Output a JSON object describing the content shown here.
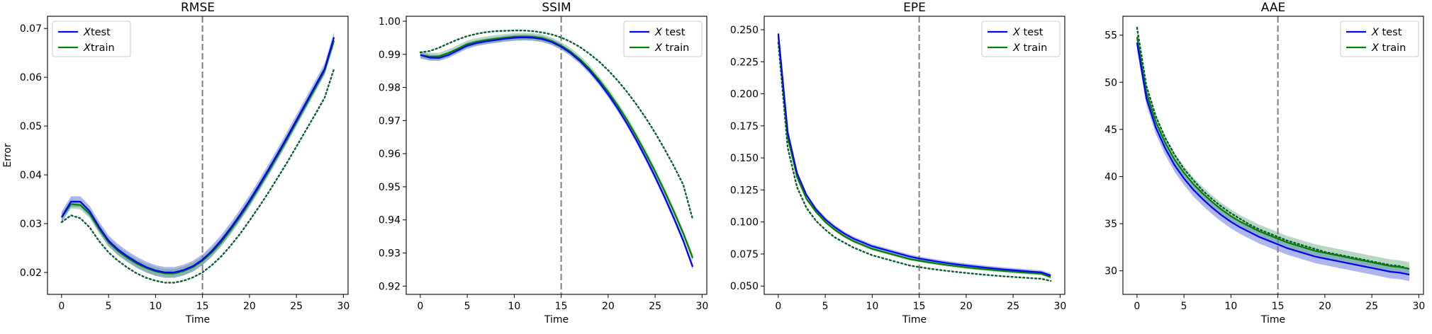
{
  "colors": {
    "test": "#0000ff",
    "train": "#008000",
    "train_dotted": "#0b5e2f",
    "vline": "#7f7f7f",
    "band_test": "#4a5fd6",
    "band_train": "#5fa77a"
  },
  "chart_data": [
    {
      "type": "line",
      "title": "RMSE",
      "xlabel": "Time",
      "ylabel": "Error",
      "xlim": [
        -1.5,
        30.5
      ],
      "ylim": [
        0.0155,
        0.0725
      ],
      "xticks": [
        "0",
        "5",
        "10",
        "15",
        "20",
        "25",
        "30"
      ],
      "yticks": [
        "0.02",
        "0.03",
        "0.04",
        "0.05",
        "0.06",
        "0.07"
      ],
      "vline_x": 15,
      "legend_position": "upper-left",
      "legend": [
        "Xtest",
        "Xtrain"
      ],
      "legend_math": [
        "X",
        "X"
      ],
      "legend_rest": [
        "test",
        "train"
      ],
      "x": [
        0,
        1,
        2,
        3,
        4,
        5,
        6,
        7,
        8,
        9,
        10,
        11,
        12,
        13,
        14,
        15,
        16,
        17,
        18,
        19,
        20,
        21,
        22,
        23,
        24,
        25,
        26,
        27,
        28,
        29
      ],
      "series": [
        {
          "name": "Xtest",
          "values": [
            0.0313,
            0.0345,
            0.0345,
            0.0325,
            0.0293,
            0.0265,
            0.0247,
            0.0233,
            0.0221,
            0.0211,
            0.0204,
            0.02,
            0.02,
            0.0205,
            0.0213,
            0.0226,
            0.0244,
            0.0266,
            0.0291,
            0.0318,
            0.0347,
            0.0378,
            0.041,
            0.0443,
            0.0477,
            0.0512,
            0.0547,
            0.0582,
            0.0617,
            0.0682
          ],
          "band": 0.0011
        },
        {
          "name": "Xtrain",
          "values": [
            0.0313,
            0.034,
            0.0338,
            0.032,
            0.0289,
            0.0262,
            0.0244,
            0.023,
            0.0218,
            0.0209,
            0.0202,
            0.0198,
            0.0198,
            0.0203,
            0.0211,
            0.0224,
            0.0241,
            0.0262,
            0.0287,
            0.0314,
            0.0343,
            0.0374,
            0.0406,
            0.0439,
            0.0473,
            0.0508,
            0.0543,
            0.0578,
            0.0613,
            0.0675
          ],
          "band": 0.0009
        },
        {
          "name": "",
          "style": "dotted",
          "values": [
            0.0303,
            0.0317,
            0.0311,
            0.0292,
            0.0264,
            0.0241,
            0.0224,
            0.021,
            0.0198,
            0.0189,
            0.0183,
            0.0179,
            0.0179,
            0.0183,
            0.019,
            0.02,
            0.0215,
            0.0233,
            0.0255,
            0.0279,
            0.0306,
            0.0334,
            0.0363,
            0.0394,
            0.0425,
            0.0458,
            0.0491,
            0.0524,
            0.0558,
            0.0617
          ]
        }
      ]
    },
    {
      "type": "line",
      "title": "SSIM",
      "xlabel": "Time",
      "ylabel": "",
      "xlim": [
        -1.5,
        30.5
      ],
      "ylim": [
        0.9175,
        1.0015
      ],
      "xticks": [
        "0",
        "5",
        "10",
        "15",
        "20",
        "25",
        "30"
      ],
      "yticks": [
        "0.92",
        "0.93",
        "0.94",
        "0.95",
        "0.96",
        "0.97",
        "0.98",
        "0.99",
        "1.00"
      ],
      "vline_x": 15,
      "legend_position": "upper-right",
      "legend": [
        "X test",
        "X train"
      ],
      "legend_math": [
        "X",
        "X"
      ],
      "legend_rest": [
        " test",
        " train"
      ],
      "x": [
        0,
        1,
        2,
        3,
        4,
        5,
        6,
        7,
        8,
        9,
        10,
        11,
        12,
        13,
        14,
        15,
        16,
        17,
        18,
        19,
        20,
        21,
        22,
        23,
        24,
        25,
        26,
        27,
        28,
        29
      ],
      "series": [
        {
          "name": "X test",
          "values": [
            0.9898,
            0.989,
            0.9889,
            0.9898,
            0.9912,
            0.9926,
            0.9934,
            0.9939,
            0.9943,
            0.9947,
            0.995,
            0.9951,
            0.995,
            0.9946,
            0.9937,
            0.9923,
            0.9904,
            0.988,
            0.9851,
            0.9817,
            0.9779,
            0.9737,
            0.9691,
            0.9641,
            0.9587,
            0.953,
            0.9469,
            0.9405,
            0.9337,
            0.9258
          ],
          "band": 0.0009
        },
        {
          "name": "X train",
          "values": [
            0.9898,
            0.9893,
            0.9894,
            0.9904,
            0.9917,
            0.9931,
            0.9938,
            0.9943,
            0.9947,
            0.995,
            0.9953,
            0.9954,
            0.9953,
            0.9949,
            0.994,
            0.9926,
            0.9908,
            0.9885,
            0.9857,
            0.9824,
            0.9787,
            0.9746,
            0.9702,
            0.9653,
            0.9601,
            0.9546,
            0.9487,
            0.9425,
            0.9359,
            0.9285
          ],
          "band": 0.0011
        },
        {
          "name": "",
          "style": "dotted",
          "values": [
            0.9906,
            0.991,
            0.992,
            0.9933,
            0.9945,
            0.9955,
            0.9962,
            0.9967,
            0.997,
            0.9971,
            0.9972,
            0.9972,
            0.997,
            0.9966,
            0.996,
            0.9951,
            0.9938,
            0.9922,
            0.9902,
            0.9879,
            0.9852,
            0.9821,
            0.9787,
            0.9749,
            0.9708,
            0.9663,
            0.9614,
            0.9562,
            0.9506,
            0.9402
          ]
        }
      ]
    },
    {
      "type": "line",
      "title": "EPE",
      "xlabel": "Time",
      "ylabel": "",
      "xlim": [
        -1.5,
        30.5
      ],
      "ylim": [
        0.0435,
        0.2605
      ],
      "xticks": [
        "0",
        "5",
        "10",
        "15",
        "20",
        "25",
        "30"
      ],
      "yticks": [
        "0.050",
        "0.075",
        "0.100",
        "0.125",
        "0.150",
        "0.175",
        "0.200",
        "0.225",
        "0.250"
      ],
      "vline_x": 15,
      "legend_position": "upper-right",
      "legend": [
        "X test",
        "X train"
      ],
      "legend_math": [
        "X",
        "X"
      ],
      "legend_rest": [
        " test",
        " train"
      ],
      "x": [
        0,
        1,
        2,
        3,
        4,
        5,
        6,
        7,
        8,
        9,
        10,
        11,
        12,
        13,
        14,
        15,
        16,
        17,
        18,
        19,
        20,
        21,
        22,
        23,
        24,
        25,
        26,
        27,
        28,
        29
      ],
      "series": [
        {
          "name": "X test",
          "values": [
            0.247,
            0.17,
            0.138,
            0.121,
            0.11,
            0.102,
            0.096,
            0.091,
            0.087,
            0.084,
            0.081,
            0.079,
            0.077,
            0.075,
            0.073,
            0.0715,
            0.0702,
            0.069,
            0.0679,
            0.0669,
            0.066,
            0.0652,
            0.0644,
            0.0637,
            0.063,
            0.0624,
            0.0618,
            0.0612,
            0.0607,
            0.0582
          ],
          "band": 0.0016
        },
        {
          "name": "X train",
          "values": [
            0.245,
            0.166,
            0.135,
            0.118,
            0.108,
            0.1,
            0.094,
            0.089,
            0.085,
            0.082,
            0.079,
            0.077,
            0.075,
            0.073,
            0.071,
            0.0698,
            0.0685,
            0.0674,
            0.0664,
            0.0655,
            0.0646,
            0.0638,
            0.0631,
            0.0624,
            0.0618,
            0.0612,
            0.0606,
            0.0601,
            0.0596,
            0.057
          ],
          "band": 0.0012
        },
        {
          "name": "",
          "style": "dotted",
          "values": [
            0.24,
            0.158,
            0.127,
            0.111,
            0.101,
            0.094,
            0.088,
            0.084,
            0.08,
            0.077,
            0.074,
            0.072,
            0.07,
            0.068,
            0.066,
            0.0648,
            0.0637,
            0.0627,
            0.0618,
            0.061,
            0.0602,
            0.0595,
            0.0588,
            0.0582,
            0.0576,
            0.0571,
            0.0566,
            0.0561,
            0.0557,
            0.054
          ]
        }
      ]
    },
    {
      "type": "line",
      "title": "AAE",
      "xlabel": "Time",
      "ylabel": "",
      "xlim": [
        -1.5,
        30.5
      ],
      "ylim": [
        27.5,
        57.0
      ],
      "xticks": [
        "0",
        "5",
        "10",
        "15",
        "20",
        "25",
        "30"
      ],
      "yticks": [
        "30",
        "35",
        "40",
        "45",
        "50",
        "55"
      ],
      "vline_x": 15,
      "legend_position": "upper-right",
      "legend": [
        "X test",
        "X train"
      ],
      "legend_math": [
        "X",
        "X"
      ],
      "legend_rest": [
        " test",
        " train"
      ],
      "x": [
        0,
        1,
        2,
        3,
        4,
        5,
        6,
        7,
        8,
        9,
        10,
        11,
        12,
        13,
        14,
        15,
        16,
        17,
        18,
        19,
        20,
        21,
        22,
        23,
        24,
        25,
        26,
        27,
        28,
        29
      ],
      "series": [
        {
          "name": "X test",
          "values": [
            54.2,
            48.3,
            45.2,
            43.0,
            41.2,
            39.8,
            38.6,
            37.6,
            36.7,
            35.9,
            35.2,
            34.6,
            34.1,
            33.6,
            33.2,
            32.8,
            32.4,
            32.1,
            31.8,
            31.5,
            31.3,
            31.1,
            30.9,
            30.7,
            30.5,
            30.3,
            30.1,
            29.9,
            29.8,
            29.6
          ],
          "band": 0.7
        },
        {
          "name": "X train",
          "values": [
            54.8,
            48.9,
            45.8,
            43.6,
            41.8,
            40.4,
            39.2,
            38.2,
            37.3,
            36.5,
            35.8,
            35.2,
            34.7,
            34.2,
            33.8,
            33.4,
            33.0,
            32.7,
            32.4,
            32.1,
            31.9,
            31.7,
            31.5,
            31.3,
            31.1,
            30.9,
            30.7,
            30.5,
            30.4,
            30.2
          ],
          "band": 0.7
        },
        {
          "name": "",
          "style": "dotted",
          "values": [
            55.8,
            49.6,
            46.4,
            44.1,
            42.3,
            40.8,
            39.6,
            38.5,
            37.6,
            36.8,
            36.1,
            35.5,
            34.9,
            34.4,
            34.0,
            33.6,
            33.2,
            32.9,
            32.6,
            32.3,
            32.0,
            31.8,
            31.6,
            31.4,
            31.2,
            31.0,
            30.8,
            30.6,
            30.5,
            30.2
          ]
        }
      ]
    }
  ]
}
